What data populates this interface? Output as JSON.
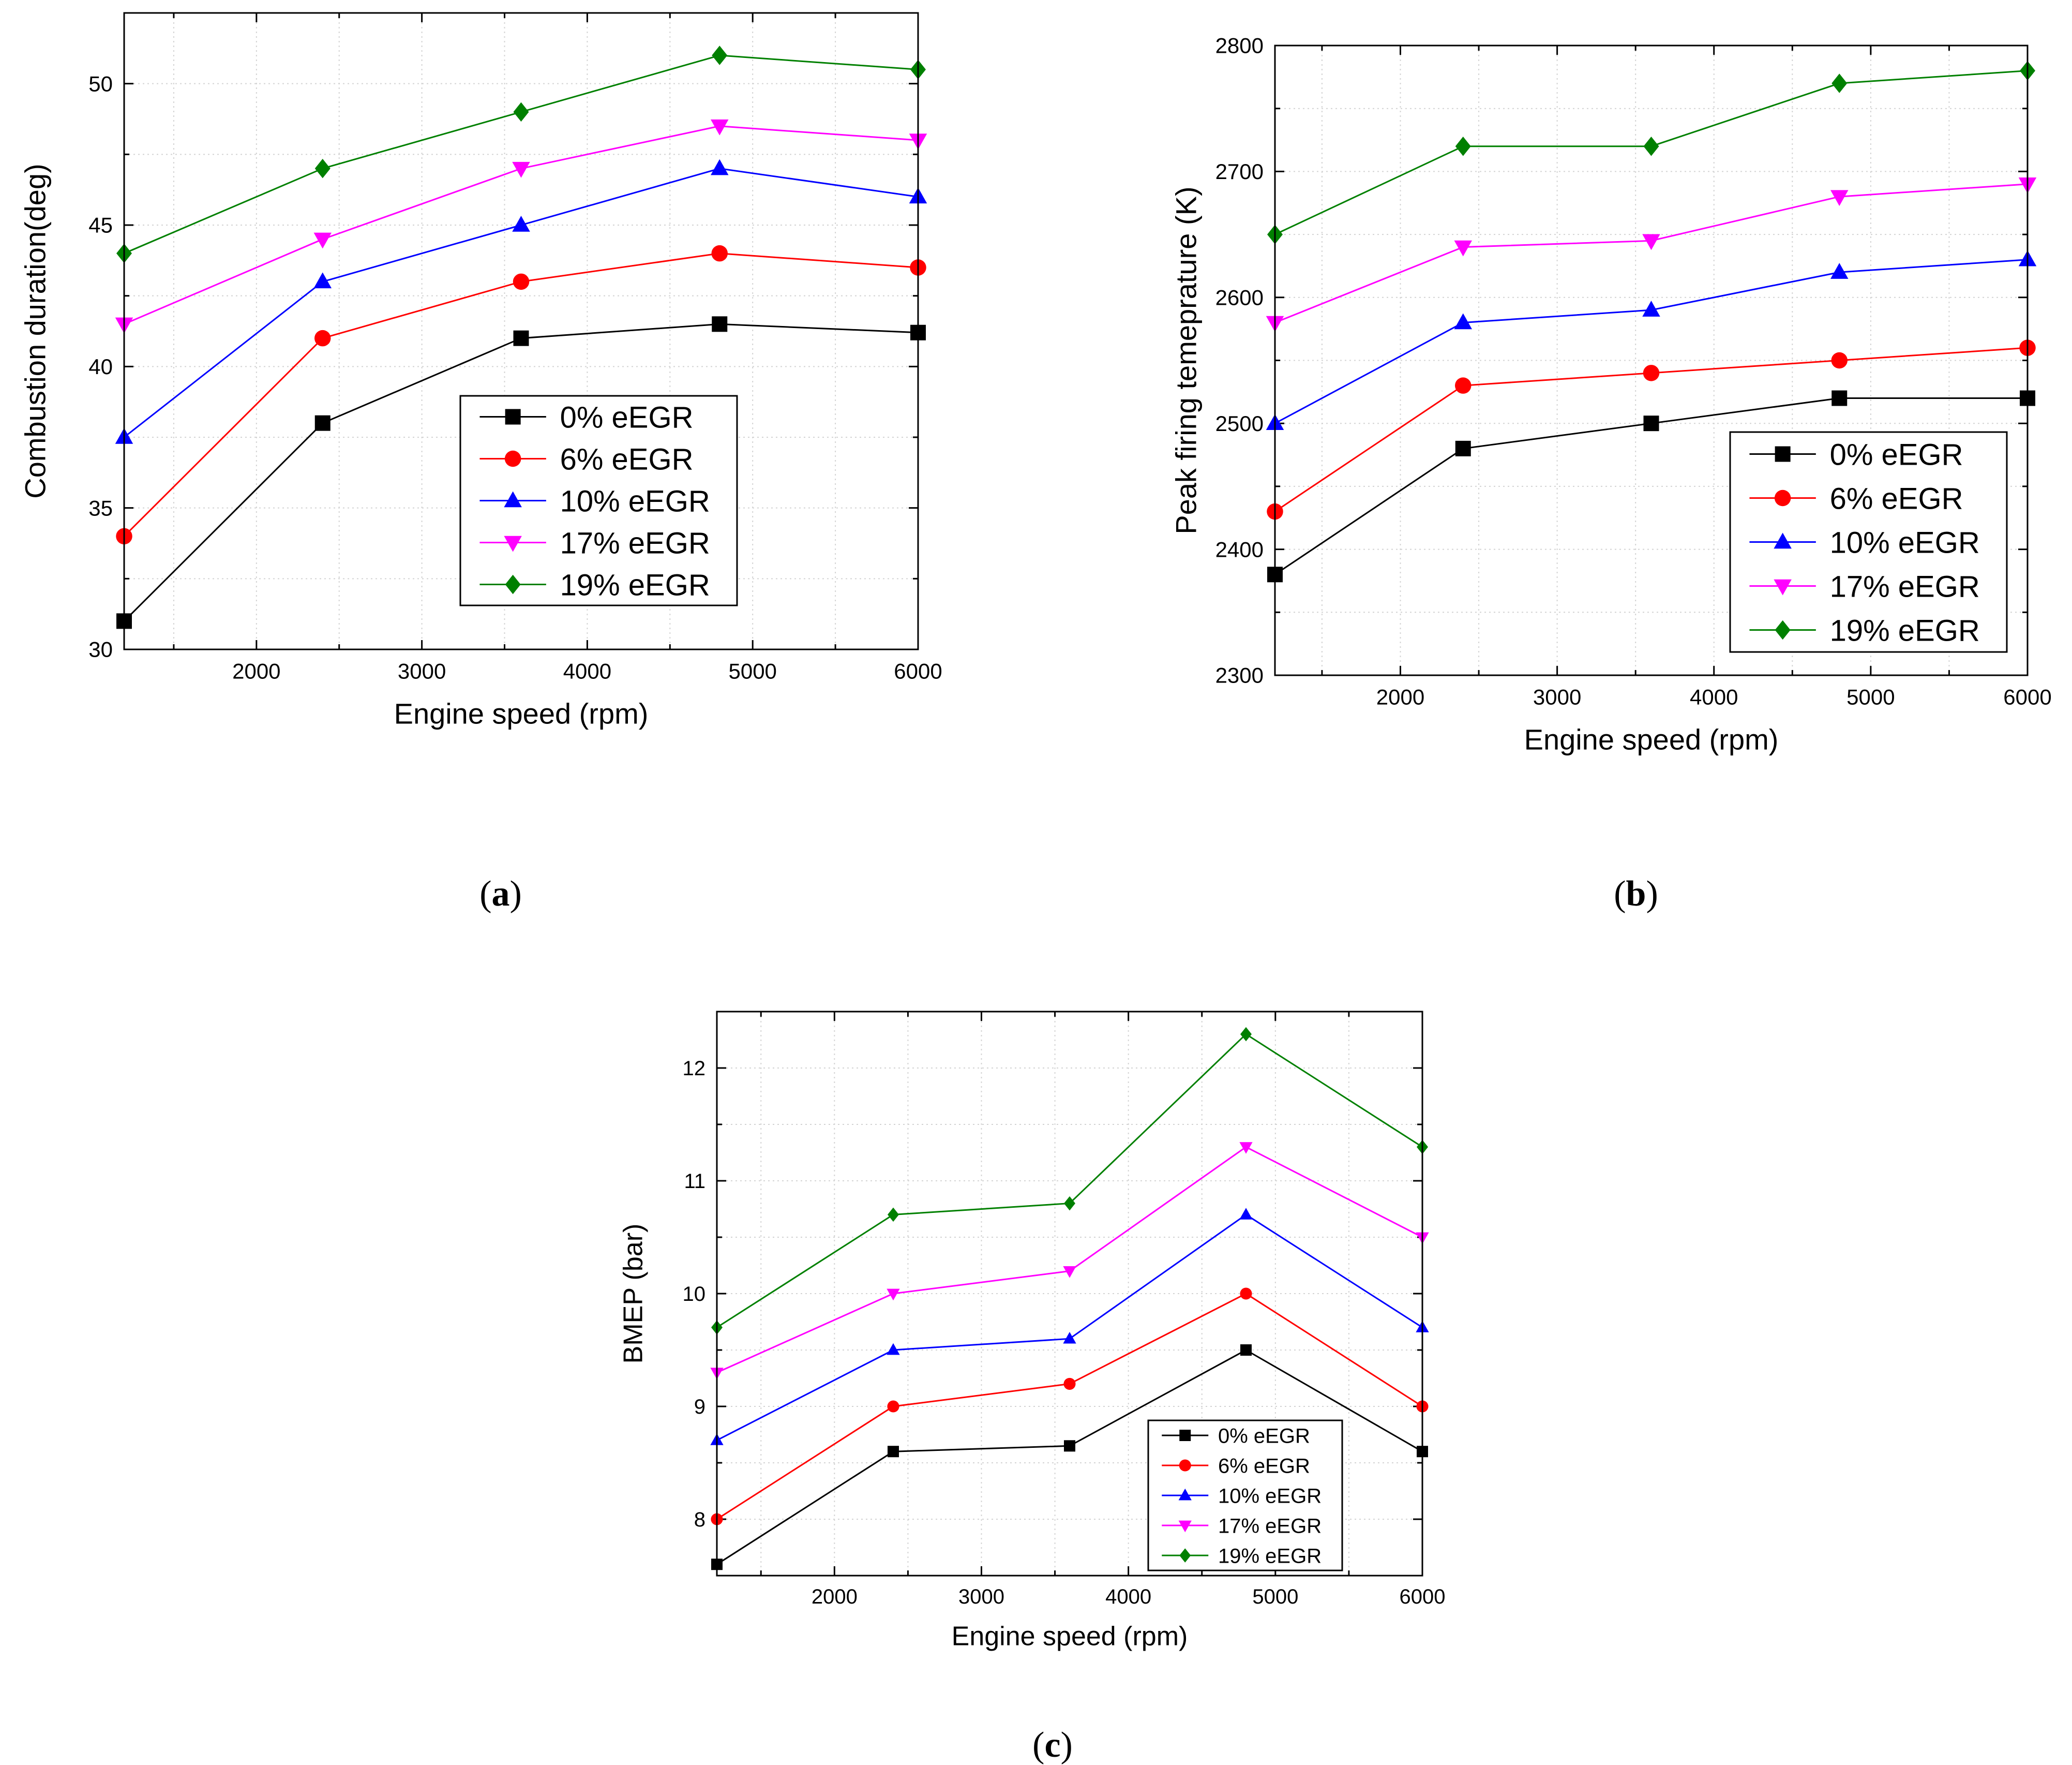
{
  "panel_labels": [
    "a",
    "b",
    "c"
  ],
  "series_meta": [
    {
      "name": "0% eEGR",
      "color": "#000000",
      "marker": "square"
    },
    {
      "name": "6% eEGR",
      "color": "#ff0000",
      "marker": "circle"
    },
    {
      "name": "10% eEGR",
      "color": "#0000ff",
      "marker": "triangle-up"
    },
    {
      "name": "17% eEGR",
      "color": "#ff00ff",
      "marker": "triangle-down"
    },
    {
      "name": "19% eEGR",
      "color": "#008000",
      "marker": "diamond"
    }
  ],
  "chart_data": [
    {
      "type": "line",
      "title": "",
      "xlabel": "Engine speed (rpm)",
      "ylabel": "Combustion duration(deg)",
      "xlim": [
        1200,
        6000
      ],
      "ylim": [
        30,
        52.5
      ],
      "xticks": [
        2000,
        3000,
        4000,
        5000,
        6000
      ],
      "yticks": [
        30,
        35,
        40,
        45,
        50
      ],
      "x": [
        1200,
        2400,
        3600,
        4800,
        6000
      ],
      "grid": true,
      "legend": "center-right",
      "series": [
        {
          "name": "0% eEGR",
          "values": [
            31,
            38,
            41,
            41.5,
            41.2
          ]
        },
        {
          "name": "6% eEGR",
          "values": [
            34,
            41,
            43,
            44,
            43.5
          ]
        },
        {
          "name": "10% eEGR",
          "values": [
            37.5,
            43,
            45,
            47,
            46
          ]
        },
        {
          "name": "17% eEGR",
          "values": [
            41.5,
            44.5,
            47,
            48.5,
            48
          ]
        },
        {
          "name": "19% eEGR",
          "values": [
            44,
            47,
            49,
            51,
            50.5
          ]
        }
      ]
    },
    {
      "type": "line",
      "title": "",
      "xlabel": "Engine speed (rpm)",
      "ylabel": "Peak firing temeprature (K)",
      "xlim": [
        1200,
        6000
      ],
      "ylim": [
        2300,
        2800
      ],
      "xticks": [
        2000,
        3000,
        4000,
        5000,
        6000
      ],
      "yticks": [
        2300,
        2400,
        2500,
        2600,
        2700,
        2800
      ],
      "x": [
        1200,
        2400,
        3600,
        4800,
        6000
      ],
      "grid": true,
      "legend": "bottom-right",
      "series": [
        {
          "name": "0% eEGR",
          "values": [
            2380,
            2480,
            2500,
            2520,
            2520
          ]
        },
        {
          "name": "6% eEGR",
          "values": [
            2430,
            2530,
            2540,
            2550,
            2560
          ]
        },
        {
          "name": "10% eEGR",
          "values": [
            2500,
            2580,
            2590,
            2620,
            2630
          ]
        },
        {
          "name": "17% eEGR",
          "values": [
            2580,
            2640,
            2645,
            2680,
            2690
          ]
        },
        {
          "name": "19% eEGR",
          "values": [
            2650,
            2720,
            2720,
            2770,
            2780
          ]
        }
      ]
    },
    {
      "type": "line",
      "title": "",
      "xlabel": "Engine speed (rpm)",
      "ylabel": "BMEP (bar)",
      "xlim": [
        1200,
        6000
      ],
      "ylim": [
        7.5,
        12.5
      ],
      "xticks": [
        2000,
        3000,
        4000,
        5000,
        6000
      ],
      "yticks": [
        8,
        9,
        10,
        11,
        12
      ],
      "x": [
        1200,
        2400,
        3600,
        4800,
        6000
      ],
      "grid": true,
      "legend": "bottom-right",
      "series": [
        {
          "name": "0% eEGR",
          "values": [
            7.6,
            8.6,
            8.65,
            9.5,
            8.6
          ]
        },
        {
          "name": "6% eEGR",
          "values": [
            8.0,
            9.0,
            9.2,
            10.0,
            9.0
          ]
        },
        {
          "name": "10% eEGR",
          "values": [
            8.7,
            9.5,
            9.6,
            10.7,
            9.7
          ]
        },
        {
          "name": "17% eEGR",
          "values": [
            9.3,
            10.0,
            10.2,
            11.3,
            10.5
          ]
        },
        {
          "name": "19% eEGR",
          "values": [
            9.7,
            10.7,
            10.8,
            12.3,
            11.3
          ]
        }
      ]
    }
  ]
}
